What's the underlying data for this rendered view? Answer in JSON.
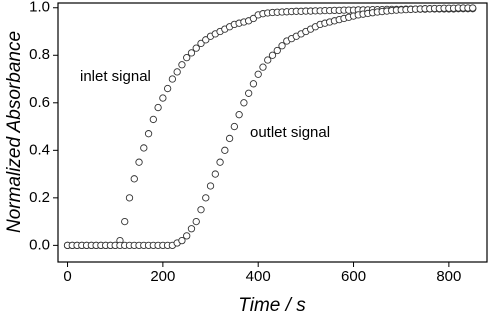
{
  "chart_data": {
    "type": "scatter",
    "xlabel": "Time / s",
    "ylabel": "Normalized Absorbance",
    "x": [
      0,
      10,
      20,
      30,
      40,
      50,
      60,
      70,
      80,
      90,
      100,
      110,
      120,
      130,
      140,
      150,
      160,
      170,
      180,
      190,
      200,
      210,
      220,
      230,
      240,
      250,
      260,
      270,
      280,
      290,
      300,
      310,
      320,
      330,
      340,
      350,
      360,
      370,
      380,
      390,
      400,
      410,
      420,
      430,
      440,
      450,
      460,
      470,
      480,
      490,
      500,
      510,
      520,
      530,
      540,
      550,
      560,
      570,
      580,
      590,
      600,
      610,
      620,
      630,
      640,
      650,
      660,
      670,
      680,
      690,
      700,
      710,
      720,
      730,
      740,
      750,
      760,
      770,
      780,
      790,
      800,
      810,
      820,
      830,
      840,
      850
    ],
    "series": [
      {
        "name": "inlet signal",
        "color": "#333333",
        "values": [
          0,
          0,
          0,
          0,
          0,
          0,
          0,
          0,
          0,
          0,
          0,
          0.02,
          0.1,
          0.2,
          0.28,
          0.35,
          0.41,
          0.47,
          0.53,
          0.58,
          0.62,
          0.66,
          0.7,
          0.73,
          0.76,
          0.79,
          0.81,
          0.83,
          0.85,
          0.865,
          0.88,
          0.89,
          0.9,
          0.91,
          0.92,
          0.93,
          0.935,
          0.94,
          0.945,
          0.955,
          0.97,
          0.975,
          0.978,
          0.98,
          0.981,
          0.982,
          0.983,
          0.984,
          0.985,
          0.985,
          0.986,
          0.986,
          0.987,
          0.987,
          0.988,
          0.988,
          0.989,
          0.989,
          0.99,
          0.99,
          0.99,
          0.991,
          0.991,
          0.991,
          0.992,
          0.992,
          0.992,
          0.993,
          0.993,
          0.993,
          0.993,
          0.994,
          0.994,
          0.994,
          0.994,
          0.994,
          0.995,
          0.995,
          0.995,
          0.995,
          0.995,
          0.995,
          0.996,
          0.996,
          0.996,
          0.996
        ]
      },
      {
        "name": "outlet signal",
        "color": "#333333",
        "values": [
          0,
          0,
          0,
          0,
          0,
          0,
          0,
          0,
          0,
          0,
          0,
          0,
          0,
          0,
          0,
          0,
          0,
          0,
          0,
          0,
          0,
          0,
          0,
          0.01,
          0.02,
          0.04,
          0.07,
          0.1,
          0.15,
          0.2,
          0.25,
          0.3,
          0.35,
          0.4,
          0.45,
          0.5,
          0.55,
          0.6,
          0.64,
          0.68,
          0.72,
          0.75,
          0.78,
          0.8,
          0.82,
          0.84,
          0.86,
          0.87,
          0.88,
          0.89,
          0.9,
          0.91,
          0.92,
          0.93,
          0.935,
          0.94,
          0.945,
          0.95,
          0.955,
          0.96,
          0.965,
          0.97,
          0.973,
          0.976,
          0.979,
          0.982,
          0.984,
          0.986,
          0.988,
          0.99,
          0.991,
          0.992,
          0.993,
          0.994,
          0.995,
          0.996,
          0.996,
          0.997,
          0.997,
          0.998,
          0.998,
          0.998,
          0.999,
          0.999,
          0.999,
          0.999
        ]
      }
    ],
    "xlim": [
      -20,
      880
    ],
    "xticks": [
      0,
      200,
      400,
      600,
      800
    ],
    "ylim": [
      -0.07,
      1.02
    ],
    "yticks": [
      {
        "value": 0,
        "label": "0.0"
      },
      0.2,
      0.4,
      0.6,
      0.8,
      {
        "value": 1,
        "label": "1.0"
      }
    ],
    "grid": false
  }
}
